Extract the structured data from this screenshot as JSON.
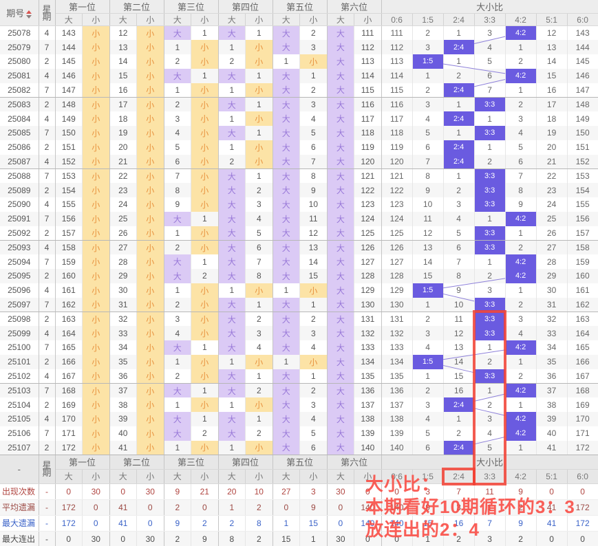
{
  "header": {
    "issue_label": "期号",
    "week_label": "星期",
    "position_labels": [
      "第一位",
      "第二位",
      "第三位",
      "第四位",
      "第五位",
      "第六位"
    ],
    "big_label": "大",
    "small_label": "小",
    "ratio_label": "大小比",
    "ratio_cols": [
      "0:6",
      "1:5",
      "2:4",
      "3:3",
      "4:2",
      "5:1",
      "6:0"
    ]
  },
  "rows": [
    {
      "issue": "25078",
      "week": "4",
      "cells": [
        "143",
        "小",
        "12",
        "小",
        "大",
        "1",
        "大",
        "1",
        "大",
        "2",
        "大",
        "111"
      ],
      "ratios": [
        "111",
        "2",
        "1",
        "3",
        "4:2",
        "12",
        "143"
      ]
    },
    {
      "issue": "25079",
      "week": "7",
      "cells": [
        "144",
        "小",
        "13",
        "小",
        "1",
        "小",
        "1",
        "小",
        "大",
        "3",
        "大",
        "112"
      ],
      "ratios": [
        "112",
        "3",
        "2:4",
        "4",
        "1",
        "13",
        "144"
      ]
    },
    {
      "issue": "25080",
      "week": "2",
      "cells": [
        "145",
        "小",
        "14",
        "小",
        "2",
        "小",
        "2",
        "小",
        "1",
        "小",
        "大",
        "113"
      ],
      "ratios": [
        "113",
        "1:5",
        "1",
        "5",
        "2",
        "14",
        "145"
      ]
    },
    {
      "issue": "25081",
      "week": "4",
      "cells": [
        "146",
        "小",
        "15",
        "小",
        "大",
        "1",
        "大",
        "1",
        "大",
        "1",
        "大",
        "114"
      ],
      "ratios": [
        "114",
        "1",
        "2",
        "6",
        "4:2",
        "15",
        "146"
      ]
    },
    {
      "issue": "25082",
      "week": "7",
      "cells": [
        "147",
        "小",
        "16",
        "小",
        "1",
        "小",
        "1",
        "小",
        "大",
        "2",
        "大",
        "115"
      ],
      "ratios": [
        "115",
        "2",
        "2:4",
        "7",
        "1",
        "16",
        "147"
      ]
    },
    {
      "issue": "25083",
      "week": "2",
      "cells": [
        "148",
        "小",
        "17",
        "小",
        "2",
        "小",
        "大",
        "1",
        "大",
        "3",
        "大",
        "116"
      ],
      "ratios": [
        "116",
        "3",
        "1",
        "3:3",
        "2",
        "17",
        "148"
      ]
    },
    {
      "issue": "25084",
      "week": "4",
      "cells": [
        "149",
        "小",
        "18",
        "小",
        "3",
        "小",
        "1",
        "小",
        "大",
        "4",
        "大",
        "117"
      ],
      "ratios": [
        "117",
        "4",
        "2:4",
        "1",
        "3",
        "18",
        "149"
      ]
    },
    {
      "issue": "25085",
      "week": "7",
      "cells": [
        "150",
        "小",
        "19",
        "小",
        "4",
        "小",
        "大",
        "1",
        "大",
        "5",
        "大",
        "118"
      ],
      "ratios": [
        "118",
        "5",
        "1",
        "3:3",
        "4",
        "19",
        "150"
      ]
    },
    {
      "issue": "25086",
      "week": "2",
      "cells": [
        "151",
        "小",
        "20",
        "小",
        "5",
        "小",
        "1",
        "小",
        "大",
        "6",
        "大",
        "119"
      ],
      "ratios": [
        "119",
        "6",
        "2:4",
        "1",
        "5",
        "20",
        "151"
      ]
    },
    {
      "issue": "25087",
      "week": "4",
      "cells": [
        "152",
        "小",
        "21",
        "小",
        "6",
        "小",
        "2",
        "小",
        "大",
        "7",
        "大",
        "120"
      ],
      "ratios": [
        "120",
        "7",
        "2:4",
        "2",
        "6",
        "21",
        "152"
      ]
    },
    {
      "issue": "25088",
      "week": "7",
      "cells": [
        "153",
        "小",
        "22",
        "小",
        "7",
        "小",
        "大",
        "1",
        "大",
        "8",
        "大",
        "121"
      ],
      "ratios": [
        "121",
        "8",
        "1",
        "3:3",
        "7",
        "22",
        "153"
      ]
    },
    {
      "issue": "25089",
      "week": "2",
      "cells": [
        "154",
        "小",
        "23",
        "小",
        "8",
        "小",
        "大",
        "2",
        "大",
        "9",
        "大",
        "122"
      ],
      "ratios": [
        "122",
        "9",
        "2",
        "3:3",
        "8",
        "23",
        "154"
      ]
    },
    {
      "issue": "25090",
      "week": "4",
      "cells": [
        "155",
        "小",
        "24",
        "小",
        "9",
        "小",
        "大",
        "3",
        "大",
        "10",
        "大",
        "123"
      ],
      "ratios": [
        "123",
        "10",
        "3",
        "3:3",
        "9",
        "24",
        "155"
      ]
    },
    {
      "issue": "25091",
      "week": "7",
      "cells": [
        "156",
        "小",
        "25",
        "小",
        "大",
        "1",
        "大",
        "4",
        "大",
        "11",
        "大",
        "124"
      ],
      "ratios": [
        "124",
        "11",
        "4",
        "1",
        "4:2",
        "25",
        "156"
      ]
    },
    {
      "issue": "25092",
      "week": "2",
      "cells": [
        "157",
        "小",
        "26",
        "小",
        "1",
        "小",
        "大",
        "5",
        "大",
        "12",
        "大",
        "125"
      ],
      "ratios": [
        "125",
        "12",
        "5",
        "3:3",
        "1",
        "26",
        "157"
      ]
    },
    {
      "issue": "25093",
      "week": "4",
      "cells": [
        "158",
        "小",
        "27",
        "小",
        "2",
        "小",
        "大",
        "6",
        "大",
        "13",
        "大",
        "126"
      ],
      "ratios": [
        "126",
        "13",
        "6",
        "3:3",
        "2",
        "27",
        "158"
      ]
    },
    {
      "issue": "25094",
      "week": "7",
      "cells": [
        "159",
        "小",
        "28",
        "小",
        "大",
        "1",
        "大",
        "7",
        "大",
        "14",
        "大",
        "127"
      ],
      "ratios": [
        "127",
        "14",
        "7",
        "1",
        "4:2",
        "28",
        "159"
      ]
    },
    {
      "issue": "25095",
      "week": "2",
      "cells": [
        "160",
        "小",
        "29",
        "小",
        "大",
        "2",
        "大",
        "8",
        "大",
        "15",
        "大",
        "128"
      ],
      "ratios": [
        "128",
        "15",
        "8",
        "2",
        "4:2",
        "29",
        "160"
      ]
    },
    {
      "issue": "25096",
      "week": "4",
      "cells": [
        "161",
        "小",
        "30",
        "小",
        "1",
        "小",
        "1",
        "小",
        "1",
        "小",
        "大",
        "129"
      ],
      "ratios": [
        "129",
        "1:5",
        "9",
        "3",
        "1",
        "30",
        "161"
      ]
    },
    {
      "issue": "25097",
      "week": "7",
      "cells": [
        "162",
        "小",
        "31",
        "小",
        "2",
        "小",
        "大",
        "1",
        "大",
        "1",
        "大",
        "130"
      ],
      "ratios": [
        "130",
        "1",
        "10",
        "3:3",
        "2",
        "31",
        "162"
      ]
    },
    {
      "issue": "25098",
      "week": "2",
      "cells": [
        "163",
        "小",
        "32",
        "小",
        "3",
        "小",
        "大",
        "2",
        "大",
        "2",
        "大",
        "131"
      ],
      "ratios": [
        "131",
        "2",
        "11",
        "3:3",
        "3",
        "32",
        "163"
      ]
    },
    {
      "issue": "25099",
      "week": "4",
      "cells": [
        "164",
        "小",
        "33",
        "小",
        "4",
        "小",
        "大",
        "3",
        "大",
        "3",
        "大",
        "132"
      ],
      "ratios": [
        "132",
        "3",
        "12",
        "3:3",
        "4",
        "33",
        "164"
      ]
    },
    {
      "issue": "25100",
      "week": "7",
      "cells": [
        "165",
        "小",
        "34",
        "小",
        "大",
        "1",
        "大",
        "4",
        "大",
        "4",
        "大",
        "133"
      ],
      "ratios": [
        "133",
        "4",
        "13",
        "1",
        "4:2",
        "34",
        "165"
      ]
    },
    {
      "issue": "25101",
      "week": "2",
      "cells": [
        "166",
        "小",
        "35",
        "小",
        "1",
        "小",
        "1",
        "小",
        "1",
        "小",
        "大",
        "134"
      ],
      "ratios": [
        "134",
        "1:5",
        "14",
        "2",
        "1",
        "35",
        "166"
      ]
    },
    {
      "issue": "25102",
      "week": "4",
      "cells": [
        "167",
        "小",
        "36",
        "小",
        "2",
        "小",
        "大",
        "1",
        "大",
        "1",
        "大",
        "135"
      ],
      "ratios": [
        "135",
        "1",
        "15",
        "3:3",
        "2",
        "36",
        "167"
      ]
    },
    {
      "issue": "25103",
      "week": "7",
      "cells": [
        "168",
        "小",
        "37",
        "小",
        "大",
        "1",
        "大",
        "2",
        "大",
        "2",
        "大",
        "136"
      ],
      "ratios": [
        "136",
        "2",
        "16",
        "1",
        "4:2",
        "37",
        "168"
      ]
    },
    {
      "issue": "25104",
      "week": "2",
      "cells": [
        "169",
        "小",
        "38",
        "小",
        "1",
        "小",
        "1",
        "小",
        "大",
        "3",
        "大",
        "137"
      ],
      "ratios": [
        "137",
        "3",
        "2:4",
        "2",
        "1",
        "38",
        "169"
      ]
    },
    {
      "issue": "25105",
      "week": "4",
      "cells": [
        "170",
        "小",
        "39",
        "小",
        "大",
        "1",
        "大",
        "1",
        "大",
        "4",
        "大",
        "138"
      ],
      "ratios": [
        "138",
        "4",
        "1",
        "3",
        "4:2",
        "39",
        "170"
      ]
    },
    {
      "issue": "25106",
      "week": "7",
      "cells": [
        "171",
        "小",
        "40",
        "小",
        "大",
        "2",
        "大",
        "2",
        "大",
        "5",
        "大",
        "139"
      ],
      "ratios": [
        "139",
        "5",
        "2",
        "4",
        "4:2",
        "40",
        "171"
      ]
    },
    {
      "issue": "25107",
      "week": "2",
      "cells": [
        "172",
        "小",
        "41",
        "小",
        "1",
        "小",
        "1",
        "小",
        "大",
        "6",
        "大",
        "140"
      ],
      "ratios": [
        "140",
        "6",
        "2:4",
        "5",
        "1",
        "41",
        "172"
      ]
    }
  ],
  "footer": {
    "dash": "-",
    "stats": [
      {
        "label": "出现次数",
        "values": [
          "-",
          "0",
          "30",
          "0",
          "30",
          "9",
          "21",
          "20",
          "10",
          "27",
          "3",
          "30",
          "0",
          "0",
          "3",
          "7",
          "11",
          "9",
          "0",
          "0"
        ]
      },
      {
        "label": "平均遗漏",
        "values": [
          "-",
          "172",
          "0",
          "41",
          "0",
          "2",
          "0",
          "1",
          "2",
          "0",
          "9",
          "0",
          "140",
          "140",
          "9",
          "3",
          "1",
          "2",
          "41",
          "172"
        ]
      },
      {
        "label": "最大遗漏",
        "values": [
          "-",
          "172",
          "0",
          "41",
          "0",
          "9",
          "2",
          "2",
          "8",
          "1",
          "15",
          "0",
          "140",
          "140",
          "15",
          "16",
          "7",
          "9",
          "41",
          "172"
        ]
      },
      {
        "label": "最大连出",
        "values": [
          "-",
          "0",
          "30",
          "0",
          "30",
          "2",
          "9",
          "8",
          "2",
          "15",
          "1",
          "30",
          "0",
          "0",
          "1",
          "2",
          "3",
          "2",
          "0",
          "0"
        ]
      }
    ]
  },
  "annotation": {
    "line1": "大小比：",
    "line2": "本期看好10期循环的3：3",
    "line3": "放连出的2：4"
  },
  "highlight_boxes": {
    "column_boxed": "3:3",
    "box_start_issue": "25098",
    "footer_cell_boxed": "2:4"
  },
  "colors": {
    "big_cell_bg": "#dbcaf5",
    "big_text": "#9878d8",
    "small_cell_bg": "#fce3a6",
    "small_text": "#e8923f",
    "ratio_highlight_bg": "#6a5be0",
    "connector_line": "#8e81da",
    "red_box": "#f23f33",
    "annotation_red": "#fa4a42",
    "appear_count_red": "#b04540",
    "max_miss_blue": "#3a62c8"
  }
}
